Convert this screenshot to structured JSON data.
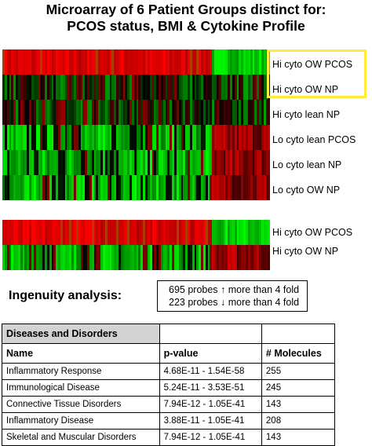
{
  "title": {
    "line1": "Microarray of 6 Patient Groups distinct for:",
    "line2": "PCOS status, BMI & Cytokine Profile"
  },
  "heatmap_top": {
    "rows": [
      {
        "label": "Hi cyto OW PCOS",
        "pattern": "red-green"
      },
      {
        "label": "Hi cyto OW NP",
        "pattern": "mixed-dark"
      },
      {
        "label": "Hi cyto lean NP",
        "pattern": "mixed-dark"
      },
      {
        "label": "Lo cyto lean PCOS",
        "pattern": "green-red"
      },
      {
        "label": "Lo cyto lean NP",
        "pattern": "green-red"
      },
      {
        "label": "Lo cyto OW NP",
        "pattern": "green-red"
      }
    ],
    "highlighted_rows": [
      "Hi cyto OW PCOS",
      "Hi cyto OW NP"
    ]
  },
  "heatmap_bottom": {
    "rows": [
      {
        "label": "Hi cyto OW PCOS",
        "pattern": "red-green"
      },
      {
        "label": "Hi cyto OW NP",
        "pattern": "green-red"
      }
    ]
  },
  "colors": {
    "up": "#ff0000",
    "down": "#00ff00",
    "neutral": "#000000",
    "highlight": "#ffeb3b"
  },
  "ingenuity": {
    "label": "Ingenuity analysis:",
    "probes_up": "695 probes ↑ more than 4 fold",
    "probes_down": "223 probes ↓ more than 4 fold"
  },
  "table": {
    "section_title": "Diseases and Disorders",
    "headers": [
      "Name",
      "p-value",
      "# Molecules"
    ],
    "rows": [
      [
        "Inflammatory Response",
        "4.68E-11 - 1.54E-58",
        "255"
      ],
      [
        "Immunological Disease",
        "5.24E-11 - 3.53E-51",
        "245"
      ],
      [
        "Connective Tissue Disorders",
        "7.94E-12 - 1.05E-41",
        "143"
      ],
      [
        "Inflammatory Disease",
        "3.88E-11 - 1.05E-41",
        "208"
      ],
      [
        "Skeletal and Muscular Disorders",
        "7.94E-12 - 1.05E-41",
        "143"
      ]
    ]
  }
}
